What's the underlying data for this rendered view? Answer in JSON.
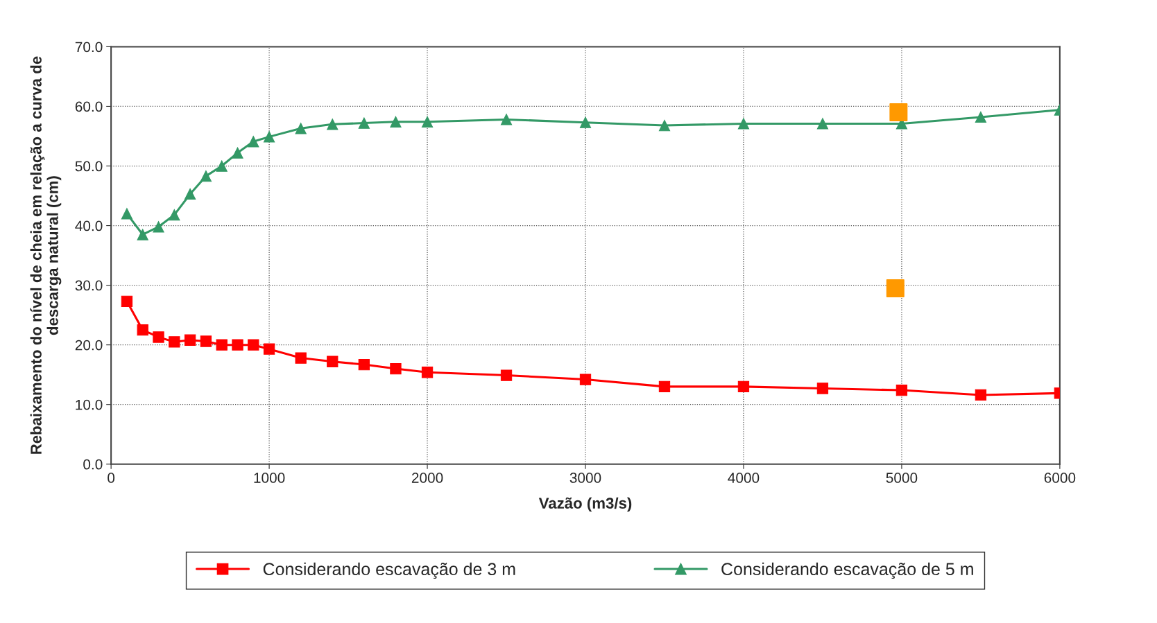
{
  "chart_data": {
    "type": "line",
    "xlabel": "Vazão (m3/s)",
    "ylabel": "Rebaixamento do nível de cheia em relação a curva de\ndescarga natural (cm)",
    "xlim": [
      0,
      6000
    ],
    "xticks": [
      0,
      1000,
      2000,
      3000,
      4000,
      5000,
      6000
    ],
    "ylim": [
      0,
      70
    ],
    "yticks": [
      {
        "value": 0,
        "label": "0.0"
      },
      {
        "value": 10,
        "label": "10.0"
      },
      {
        "value": 20,
        "label": "20.0"
      },
      {
        "value": 30,
        "label": "30.0"
      },
      {
        "value": 40,
        "label": "40.0"
      },
      {
        "value": 50,
        "label": "50.0"
      },
      {
        "value": 60,
        "label": "60.0"
      },
      {
        "value": 70,
        "label": "70.0"
      }
    ],
    "grid": true,
    "legend": "bottom",
    "series": [
      {
        "name": "Considerando escavação de 3 m",
        "color": "#ff0000",
        "marker": "square",
        "x": [
          100,
          200,
          300,
          400,
          500,
          600,
          700,
          800,
          900,
          1000,
          1200,
          1400,
          1600,
          1800,
          2000,
          2500,
          3000,
          3500,
          4000,
          4500,
          5000,
          5500,
          6000
        ],
        "values": [
          27.3,
          22.5,
          21.3,
          20.5,
          20.8,
          20.6,
          20.0,
          20.0,
          20.0,
          19.3,
          17.8,
          17.2,
          16.7,
          16.0,
          15.4,
          14.9,
          14.2,
          13.0,
          13.0,
          12.7,
          12.4,
          11.6,
          11.9
        ]
      },
      {
        "name": "Considerando escavação de 5 m",
        "color": "#339966",
        "marker": "triangle",
        "x": [
          100,
          200,
          300,
          400,
          500,
          600,
          700,
          800,
          900,
          1000,
          1200,
          1400,
          1600,
          1800,
          2000,
          2500,
          3000,
          3500,
          4000,
          4500,
          5000,
          5500,
          6000
        ],
        "values": [
          42.0,
          38.5,
          39.8,
          41.8,
          45.3,
          48.3,
          50.0,
          52.2,
          54.1,
          54.9,
          56.3,
          57.0,
          57.2,
          57.4,
          57.4,
          57.8,
          57.3,
          56.8,
          57.1,
          57.1,
          57.1,
          58.2,
          59.4
        ]
      },
      {
        "type": "scatter",
        "color": "#ff9900",
        "marker": "square",
        "x": [
          4980,
          4960
        ],
        "values": [
          59.0,
          29.5
        ]
      }
    ]
  }
}
